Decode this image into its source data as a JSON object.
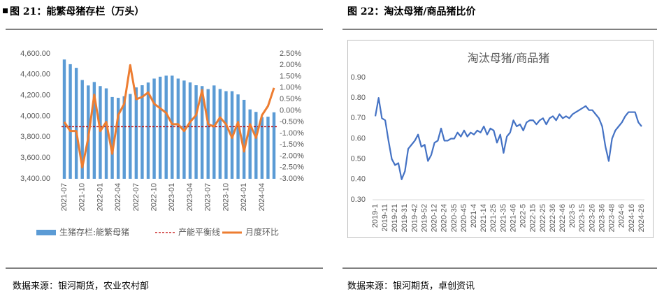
{
  "figures": [
    {
      "caption": "图 21：能繁母猪存栏（万头）",
      "source": "数据来源：银河期货，农业农村部"
    },
    {
      "caption": "图 22：淘汰母猪/商品猪比价",
      "source": "数据来源：银河期货，卓创资讯"
    }
  ],
  "chart_data": [
    {
      "type": "combo",
      "categories": [
        "2021-07",
        null,
        null,
        "2021-10",
        null,
        null,
        "2022-01",
        null,
        null,
        "2022-04",
        null,
        null,
        "2022-07",
        null,
        null,
        "2022-10",
        null,
        null,
        "2023-01",
        null,
        null,
        "2023-04",
        null,
        null,
        "2023-07",
        null,
        null,
        "2023-10",
        null,
        null,
        "2024-01",
        null,
        null,
        "2024-04",
        null,
        null
      ],
      "series": [
        {
          "name": "生猪存栏:能繁母猪",
          "type": "bar",
          "axis": "y",
          "color": "#5b9bd5",
          "values": [
            4545,
            4500,
            4465,
            4348,
            4296,
            4329,
            4290,
            4268,
            4185,
            4177,
            4192,
            4214,
            4277,
            4298,
            4324,
            4362,
            4380,
            4390,
            4390,
            4362,
            4343,
            4325,
            4298,
            4290,
            4261,
            4296,
            4262,
            4241,
            4241,
            4210,
            4158,
            4066,
            4042,
            3992,
            3996,
            4038
          ]
        },
        {
          "name": "产能平衡线",
          "type": "hline",
          "axis": "y",
          "color": "#c00000",
          "value": 3900
        },
        {
          "name": "月度环比",
          "type": "line",
          "axis": "y2",
          "color": "#ed7d31",
          "values": [
            -0.5,
            -0.9,
            -0.9,
            -2.5,
            -1.2,
            0.7,
            -0.9,
            -0.5,
            -1.9,
            -0.2,
            0.3,
            2.0,
            0.5,
            0.6,
            0.8,
            0.3,
            0.1,
            -0.1,
            -0.6,
            -0.6,
            -0.9,
            -0.5,
            -0.2,
            0.9,
            -0.6,
            -0.7,
            -0.3,
            -0.6,
            -1.2,
            -0.5,
            -1.8,
            -0.6,
            -1.2,
            -0.2,
            0.2,
            1.0
          ]
        }
      ],
      "ylim": [
        3400,
        4600
      ],
      "yticks": [
        {
          "value": 3400,
          "label": "3,400.00"
        },
        {
          "value": 3600,
          "label": "3,600.00"
        },
        {
          "value": 3800,
          "label": "3,800.00"
        },
        {
          "value": 4000,
          "label": "4,000.00"
        },
        {
          "value": 4200,
          "label": "4,200.00"
        },
        {
          "value": 4400,
          "label": "4,400.00"
        },
        {
          "value": 4600,
          "label": "4,600.00"
        }
      ],
      "y2lim": [
        -3,
        2.5
      ],
      "y2ticks": [
        {
          "value": -3,
          "label": "-3.00%"
        },
        {
          "value": -2.5,
          "label": "-2.50%"
        },
        {
          "value": -2,
          "label": "-2.00%"
        },
        {
          "value": -1.5,
          "label": "-1.50%"
        },
        {
          "value": -1,
          "label": "-1.00%"
        },
        {
          "value": -0.5,
          "label": "-0.50%"
        },
        {
          "value": 0,
          "label": "0.00%"
        },
        {
          "value": 0.5,
          "label": "0.50%"
        },
        {
          "value": 1,
          "label": "1.00%"
        },
        {
          "value": 1.5,
          "label": "1.50%"
        },
        {
          "value": 2,
          "label": "2.00%"
        },
        {
          "value": 2.5,
          "label": "2.50%"
        }
      ],
      "grid": false,
      "legend": "bottom"
    },
    {
      "type": "line",
      "title": "淘汰母猪/商品猪",
      "color": "#4472c4",
      "categories": [
        "2019-1",
        null,
        null,
        "2019-11",
        null,
        null,
        "2019-21",
        null,
        null,
        "2019-31",
        null,
        null,
        "2019-42",
        null,
        null,
        "2019-52",
        null,
        null,
        "2020-12",
        null,
        null,
        "2020-24",
        null,
        null,
        "2020-35",
        null,
        null,
        "2020-45",
        null,
        null,
        "2021-4",
        null,
        null,
        "2021-14",
        null,
        null,
        "2021-25",
        null,
        null,
        "2021-35",
        null,
        null,
        "2021-46",
        null,
        null,
        "2022-5",
        null,
        null,
        "2022-15",
        null,
        null,
        "2022-25",
        null,
        null,
        "2022-36",
        null,
        null,
        "2022-46",
        null,
        null,
        "2023-5",
        null,
        null,
        "2023-15",
        null,
        null,
        "2023-26",
        null,
        null,
        "2023-36",
        null,
        null,
        "2023-48",
        null,
        null,
        "2024-6",
        null,
        null,
        "2024-16",
        null,
        null,
        "2024-26"
      ],
      "values": [
        0.71,
        0.8,
        0.7,
        0.69,
        0.59,
        0.5,
        0.47,
        0.48,
        0.4,
        0.44,
        0.55,
        0.57,
        0.59,
        0.62,
        0.56,
        0.57,
        0.49,
        0.52,
        0.58,
        0.59,
        0.65,
        0.59,
        0.59,
        0.6,
        0.6,
        0.63,
        0.61,
        0.64,
        0.61,
        0.63,
        0.62,
        0.64,
        0.63,
        0.66,
        0.62,
        0.65,
        0.64,
        0.58,
        0.62,
        0.53,
        0.61,
        0.63,
        0.69,
        0.66,
        0.67,
        0.64,
        0.68,
        0.69,
        0.69,
        0.67,
        0.69,
        0.7,
        0.67,
        0.7,
        0.71,
        0.69,
        0.72,
        0.7,
        0.71,
        0.7,
        0.72,
        0.73,
        0.74,
        0.75,
        0.76,
        0.74,
        0.74,
        0.72,
        0.7,
        0.66,
        0.56,
        0.49,
        0.6,
        0.64,
        0.66,
        0.68,
        0.71,
        0.73,
        0.73,
        0.73,
        0.68,
        0.66
      ],
      "ylim": [
        0.3,
        0.9
      ],
      "yticks": [
        {
          "value": 0.3,
          "label": "0.30"
        },
        {
          "value": 0.4,
          "label": "0.40"
        },
        {
          "value": 0.5,
          "label": "0.50"
        },
        {
          "value": 0.6,
          "label": "0.60"
        },
        {
          "value": 0.7,
          "label": "0.70"
        },
        {
          "value": 0.8,
          "label": "0.80"
        },
        {
          "value": 0.9,
          "label": "0.90"
        }
      ],
      "grid": false
    }
  ]
}
